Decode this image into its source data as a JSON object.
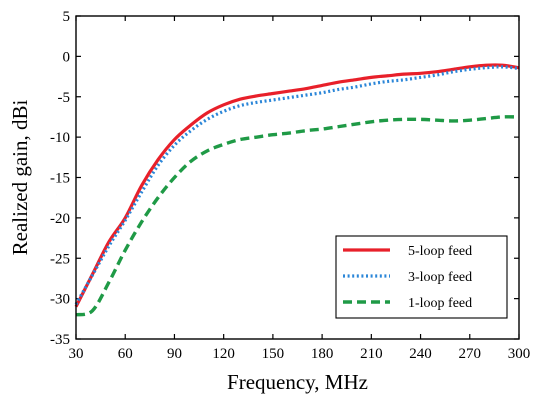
{
  "chart_data": {
    "type": "line",
    "xlabel": "Frequency, MHz",
    "ylabel": "Realized gain, dBi",
    "xlim": [
      30,
      300
    ],
    "ylim": [
      -35,
      5
    ],
    "xticks": [
      30,
      60,
      90,
      120,
      150,
      180,
      210,
      240,
      270,
      300
    ],
    "yticks": [
      5,
      0,
      -5,
      -10,
      -15,
      -20,
      -25,
      -30,
      -35
    ],
    "grid": false,
    "legend_position": "bottom-right",
    "series": [
      {
        "name": "5-loop feed",
        "color": "#e8202a",
        "style": "solid",
        "x": [
          30,
          40,
          50,
          60,
          70,
          80,
          90,
          100,
          110,
          120,
          130,
          140,
          150,
          160,
          170,
          180,
          190,
          200,
          210,
          220,
          230,
          240,
          250,
          260,
          270,
          280,
          290,
          300
        ],
        "y": [
          -31,
          -27,
          -23,
          -20,
          -16,
          -12.8,
          -10.3,
          -8.5,
          -7,
          -6,
          -5.3,
          -4.9,
          -4.6,
          -4.3,
          -4,
          -3.6,
          -3.2,
          -2.9,
          -2.6,
          -2.4,
          -2.2,
          -2.1,
          -1.9,
          -1.6,
          -1.3,
          -1.1,
          -1.1,
          -1.4
        ]
      },
      {
        "name": "3-loop feed",
        "color": "#2b86d8",
        "style": "dotted",
        "x": [
          30,
          40,
          50,
          60,
          70,
          80,
          90,
          100,
          110,
          120,
          130,
          140,
          150,
          160,
          170,
          180,
          190,
          200,
          210,
          220,
          230,
          240,
          250,
          260,
          270,
          280,
          290,
          300
        ],
        "y": [
          -30.7,
          -27.1,
          -23.5,
          -20.3,
          -16.8,
          -13.5,
          -11,
          -9.2,
          -7.8,
          -6.8,
          -6.1,
          -5.7,
          -5.4,
          -5.1,
          -4.8,
          -4.5,
          -4.1,
          -3.8,
          -3.4,
          -3.1,
          -2.9,
          -2.6,
          -2.3,
          -1.9,
          -1.6,
          -1.4,
          -1.3,
          -1.5
        ]
      },
      {
        "name": "1-loop feed",
        "color": "#1f9a46",
        "style": "dashed",
        "x": [
          30,
          40,
          50,
          60,
          70,
          80,
          90,
          100,
          110,
          120,
          130,
          140,
          150,
          160,
          170,
          180,
          190,
          200,
          210,
          220,
          230,
          240,
          250,
          260,
          270,
          280,
          290,
          300
        ],
        "y": [
          -32,
          -31.5,
          -28,
          -24,
          -20.5,
          -17.5,
          -15,
          -13,
          -11.7,
          -10.9,
          -10.3,
          -10,
          -9.7,
          -9.5,
          -9.2,
          -9,
          -8.7,
          -8.4,
          -8.1,
          -7.9,
          -7.8,
          -7.8,
          -7.9,
          -8,
          -7.9,
          -7.7,
          -7.5,
          -7.5
        ]
      }
    ]
  }
}
